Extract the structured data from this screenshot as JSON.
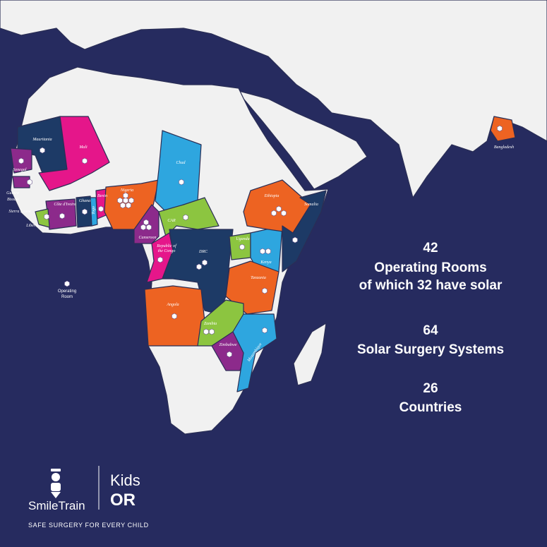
{
  "map": {
    "countries": [
      "Mauritania",
      "Mali",
      "Senegal",
      "Guinea",
      "Bissau",
      "Sierra Leone",
      "Liberia",
      "Côte d'Ivoire",
      "Ghana",
      "Togo",
      "Benin",
      "Nigeria",
      "Chad",
      "Cameroon",
      "CAR",
      "Republic of",
      "the Congo",
      "DRC",
      "Ethiopia",
      "Somalia",
      "Uganda",
      "Kenya",
      "Tanzania",
      "Angola",
      "Zambia",
      "Zimbabwe",
      "Mozambique",
      "Bangladesh"
    ]
  },
  "legend": {
    "lines": [
      "Operating",
      "Room"
    ]
  },
  "stats": [
    {
      "number": "42",
      "lines": [
        "Operating Rooms",
        "of which 32 have solar"
      ]
    },
    {
      "number": "64",
      "lines": [
        "Solar Surgery Systems"
      ]
    },
    {
      "number": "26",
      "lines": [
        "Countries"
      ]
    }
  ],
  "logo": {
    "brand": "SmileTrain",
    "partner_lines": [
      "Kids",
      "OR"
    ],
    "tagline": "SAFE SURGERY FOR EVERY CHILD"
  }
}
